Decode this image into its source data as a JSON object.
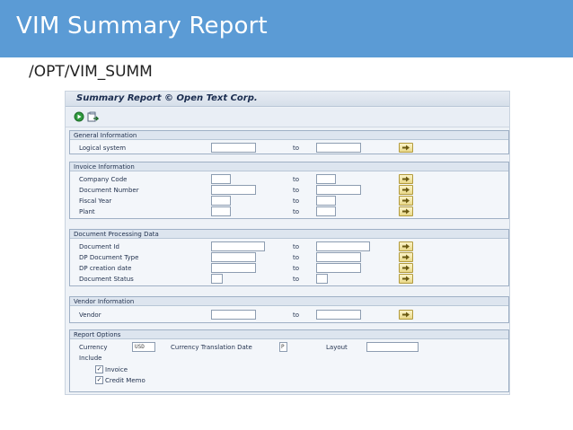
{
  "slide": {
    "title": "VIM Summary Report",
    "subtitle": "/OPT/VIM_SUMM",
    "header_color": "#5b9bd5"
  },
  "sap": {
    "title": "Summary Report © Open Text Corp.",
    "toolbar": {
      "execute_icon": "execute-icon",
      "variant_icon": "get-variant-icon"
    },
    "to_label": "to",
    "groups": {
      "general": {
        "title": "General Information",
        "logical_system": {
          "label": "Logical system",
          "from": "",
          "to": ""
        }
      },
      "invoice": {
        "title": "Invoice Information",
        "company_code": {
          "label": "Company Code",
          "from": "",
          "to": ""
        },
        "document_number": {
          "label": "Document Number",
          "from": "",
          "to": ""
        },
        "fiscal_year": {
          "label": "Fiscal Year",
          "from": "",
          "to": ""
        },
        "plant": {
          "label": "Plant",
          "from": "",
          "to": ""
        }
      },
      "processing": {
        "title": "Document Processing Data",
        "document_id": {
          "label": "Document Id",
          "from": "",
          "to": ""
        },
        "dp_document_type": {
          "label": "DP Document Type",
          "from": "",
          "to": ""
        },
        "dp_creation_date": {
          "label": "DP creation date",
          "from": "",
          "to": ""
        },
        "document_status": {
          "label": "Document Status",
          "from": "",
          "to": ""
        }
      },
      "vendor": {
        "title": "Vendor Information",
        "vendor": {
          "label": "Vendor",
          "from": "",
          "to": ""
        }
      },
      "options": {
        "title": "Report Options",
        "currency_label": "Currency",
        "currency_value": "USD",
        "translation_label": "Currency Translation Date",
        "translation_value": "P",
        "layout_label": "Layout",
        "layout_value": "",
        "include_label": "Include",
        "invoice_label": "Invoice",
        "invoice_checked": "✓",
        "credit_memo_label": "Credit Memo",
        "credit_memo_checked": "✓"
      }
    }
  }
}
